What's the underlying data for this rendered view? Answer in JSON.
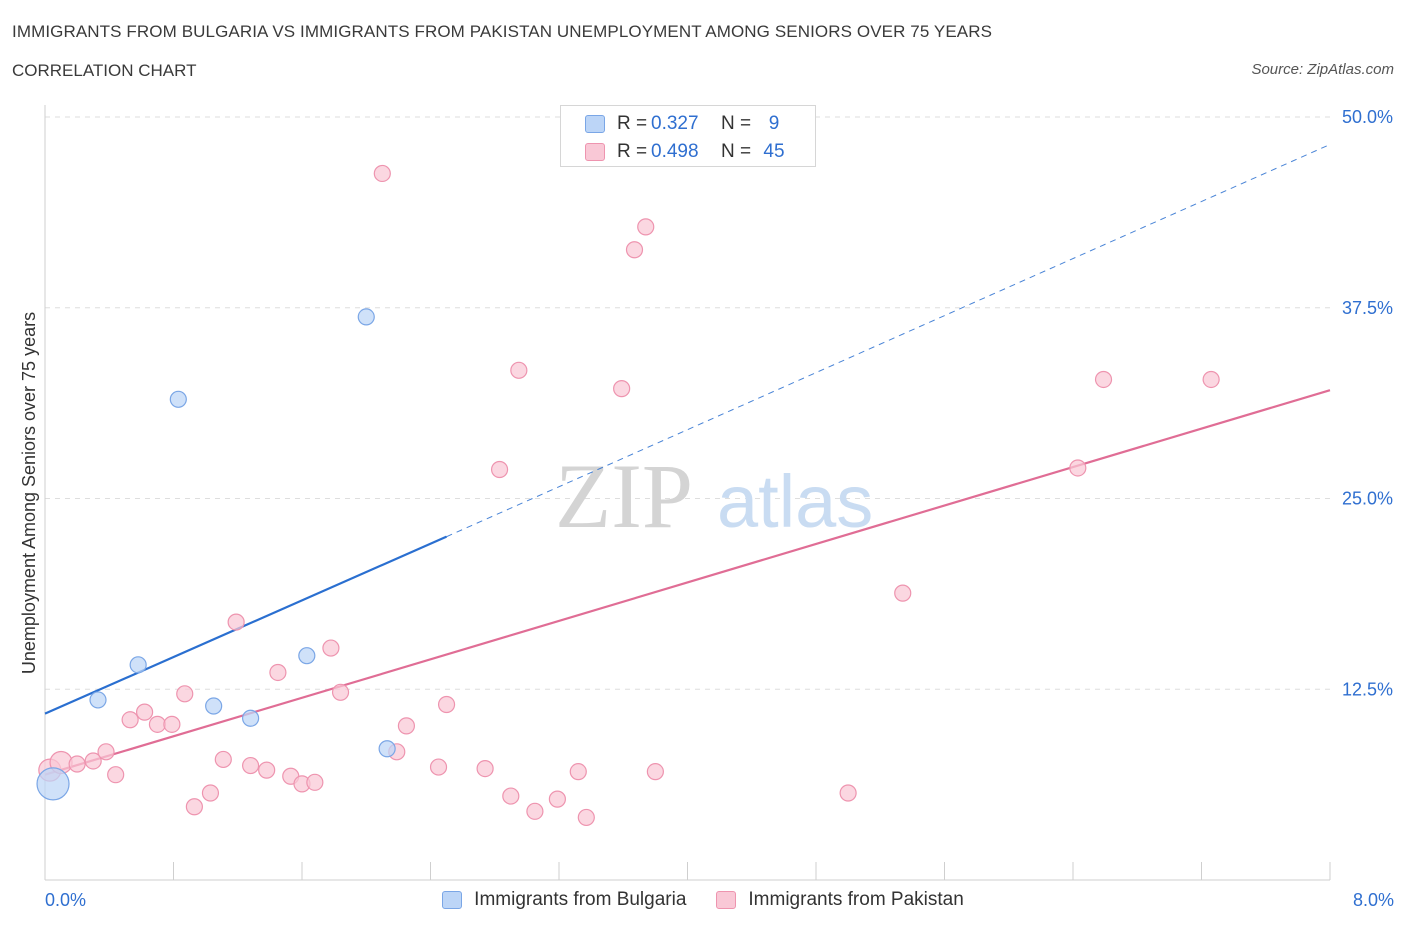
{
  "title": "IMMIGRANTS FROM BULGARIA VS IMMIGRANTS FROM PAKISTAN UNEMPLOYMENT AMONG SENIORS OVER 75 YEARS",
  "subtitle": "CORRELATION CHART",
  "source": "Source: ZipAtlas.com",
  "watermark": {
    "zip": "ZIP",
    "atlas": "atlas"
  },
  "colors": {
    "bulgaria_fill": "#bcd5f7",
    "bulgaria_stroke": "#7aa6e6",
    "bulgaria_line": "#2a6fd0",
    "pakistan_fill": "#f9c8d6",
    "pakistan_stroke": "#ee94af",
    "pakistan_line": "#e06d95",
    "grid": "#dedede",
    "axis_text": "#2f6fd0"
  },
  "legend_top": {
    "rows": [
      {
        "r_label": "R =",
        "r_value": "0.327",
        "n_label": "N =",
        "n_value": "9"
      },
      {
        "r_label": "R =",
        "r_value": "0.498",
        "n_label": "N =",
        "n_value": "45"
      }
    ]
  },
  "legend_bottom": {
    "bulgaria": "Immigrants from Bulgaria",
    "pakistan": "Immigrants from Pakistan"
  },
  "chart_data": {
    "type": "scatter",
    "title": "IMMIGRANTS FROM BULGARIA VS IMMIGRANTS FROM PAKISTAN UNEMPLOYMENT AMONG SENIORS OVER 75 YEARS",
    "xlabel": "",
    "ylabel": "Unemployment Among Seniors over 75 years",
    "xlim": [
      0,
      8
    ],
    "ylim": [
      0,
      50
    ],
    "x_tick_labels": {
      "left": "0.0%",
      "right": "8.0%"
    },
    "y_ticks": [
      {
        "value": 12.5,
        "label": "12.5%"
      },
      {
        "value": 25,
        "label": "25.0%"
      },
      {
        "value": 37.5,
        "label": "37.5%"
      },
      {
        "value": 50,
        "label": "50.0%"
      }
    ],
    "series": [
      {
        "name": "Immigrants from Bulgaria",
        "R": 0.327,
        "N": 9,
        "points": [
          {
            "x": 0.05,
            "y": 6.3,
            "size": "large"
          },
          {
            "x": 0.33,
            "y": 11.8
          },
          {
            "x": 0.58,
            "y": 14.1
          },
          {
            "x": 0.83,
            "y": 31.5
          },
          {
            "x": 1.05,
            "y": 11.4
          },
          {
            "x": 1.28,
            "y": 10.6
          },
          {
            "x": 1.63,
            "y": 14.7
          },
          {
            "x": 2.0,
            "y": 36.9
          },
          {
            "x": 2.13,
            "y": 8.6
          }
        ],
        "trend": {
          "x0": 0,
          "y0": 10.9,
          "x1": 2.5,
          "y1": 22.5,
          "dashed_to": {
            "x": 8,
            "y": 48.2
          }
        }
      },
      {
        "name": "Immigrants from Pakistan",
        "R": 0.498,
        "N": 45,
        "points": [
          {
            "x": 0.03,
            "y": 7.2,
            "size": "medium"
          },
          {
            "x": 0.1,
            "y": 7.7,
            "size": "medium"
          },
          {
            "x": 0.2,
            "y": 7.6
          },
          {
            "x": 0.3,
            "y": 7.8
          },
          {
            "x": 0.38,
            "y": 8.4
          },
          {
            "x": 0.44,
            "y": 6.9
          },
          {
            "x": 0.53,
            "y": 10.5
          },
          {
            "x": 0.62,
            "y": 11.0
          },
          {
            "x": 0.7,
            "y": 10.2
          },
          {
            "x": 0.79,
            "y": 10.2
          },
          {
            "x": 0.87,
            "y": 12.2
          },
          {
            "x": 0.93,
            "y": 4.8
          },
          {
            "x": 1.03,
            "y": 5.7
          },
          {
            "x": 1.11,
            "y": 7.9
          },
          {
            "x": 1.19,
            "y": 16.9
          },
          {
            "x": 1.28,
            "y": 7.5
          },
          {
            "x": 1.38,
            "y": 7.2
          },
          {
            "x": 1.45,
            "y": 13.6
          },
          {
            "x": 1.53,
            "y": 6.8
          },
          {
            "x": 1.6,
            "y": 6.3
          },
          {
            "x": 1.68,
            "y": 6.4
          },
          {
            "x": 1.78,
            "y": 15.2
          },
          {
            "x": 1.84,
            "y": 12.3
          },
          {
            "x": 2.1,
            "y": 46.3
          },
          {
            "x": 2.19,
            "y": 8.4
          },
          {
            "x": 2.25,
            "y": 10.1
          },
          {
            "x": 2.45,
            "y": 7.4
          },
          {
            "x": 2.5,
            "y": 11.5
          },
          {
            "x": 2.74,
            "y": 7.3
          },
          {
            "x": 2.83,
            "y": 26.9
          },
          {
            "x": 2.9,
            "y": 5.5
          },
          {
            "x": 2.95,
            "y": 33.4
          },
          {
            "x": 3.05,
            "y": 4.5
          },
          {
            "x": 3.19,
            "y": 5.3
          },
          {
            "x": 3.32,
            "y": 7.1
          },
          {
            "x": 3.37,
            "y": 4.1
          },
          {
            "x": 3.59,
            "y": 32.2
          },
          {
            "x": 3.67,
            "y": 41.3
          },
          {
            "x": 3.74,
            "y": 42.8
          },
          {
            "x": 3.8,
            "y": 7.1
          },
          {
            "x": 5.0,
            "y": 5.7
          },
          {
            "x": 5.34,
            "y": 18.8
          },
          {
            "x": 6.43,
            "y": 27.0
          },
          {
            "x": 6.59,
            "y": 32.8
          },
          {
            "x": 7.26,
            "y": 32.8
          }
        ],
        "trend": {
          "x0": 0,
          "y0": 6.9,
          "x1": 8,
          "y1": 32.1
        }
      }
    ]
  }
}
